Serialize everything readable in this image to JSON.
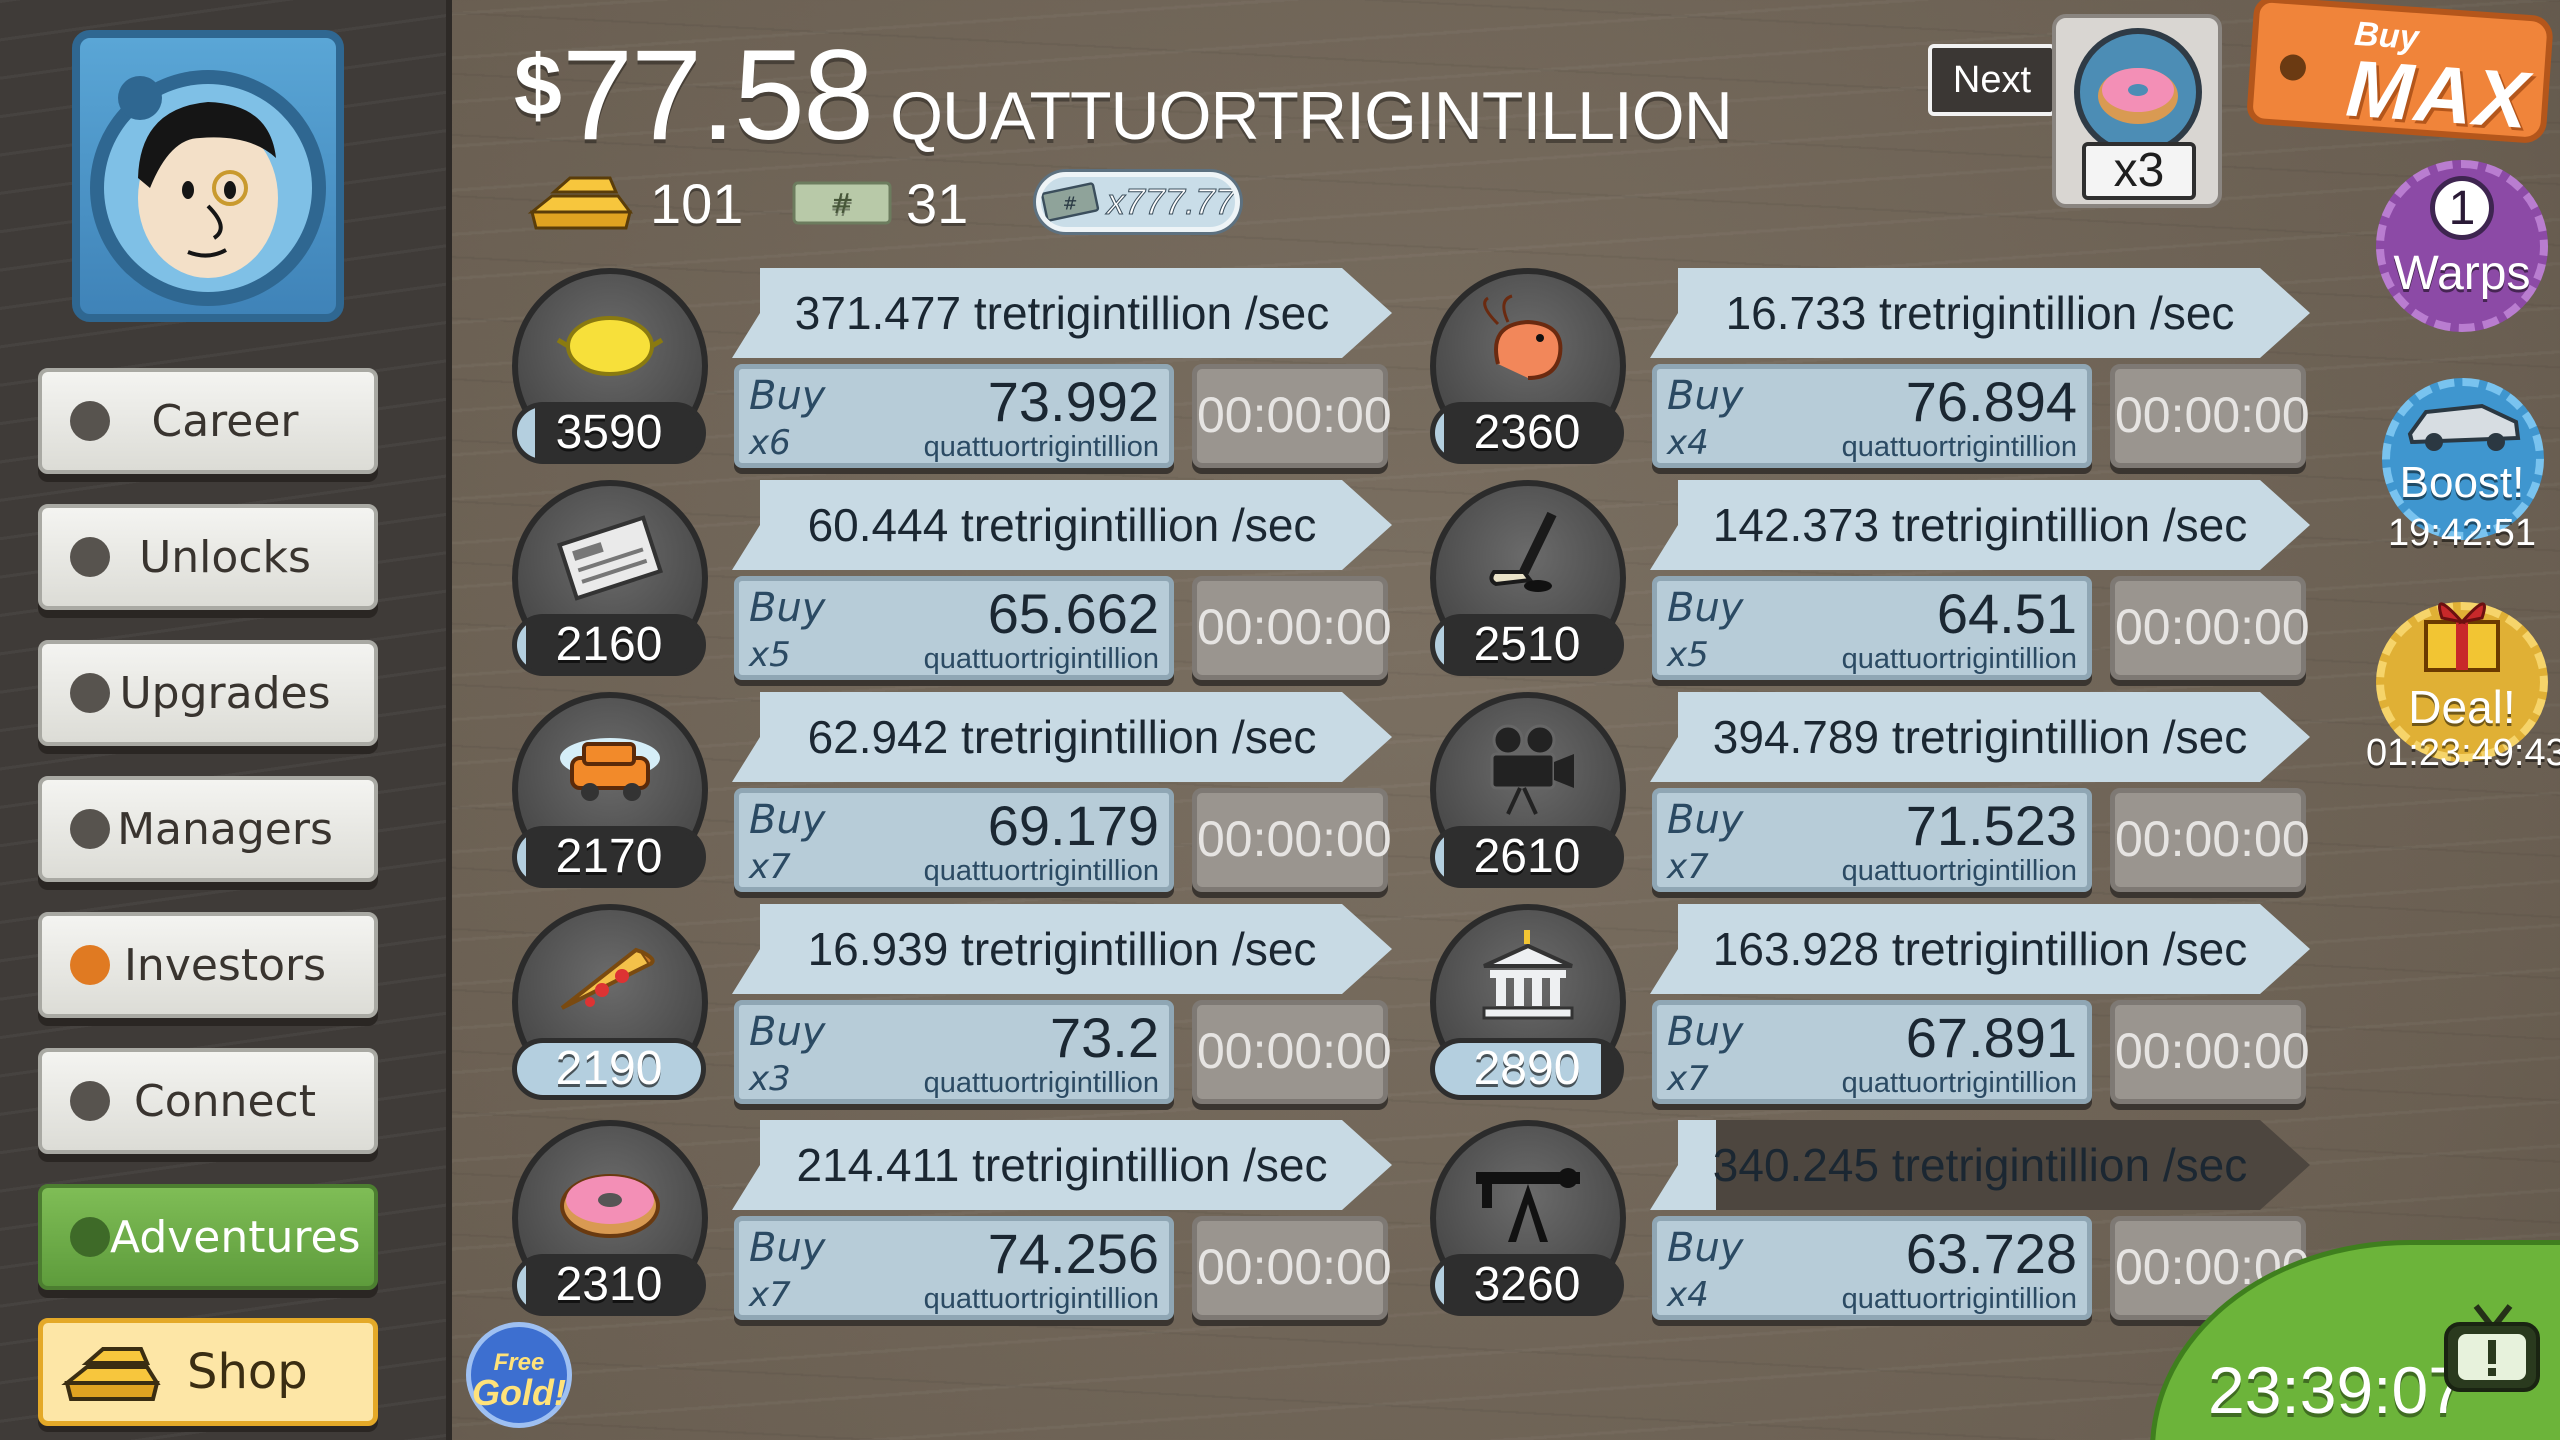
{
  "sidebar": {
    "nav": [
      {
        "label": "Career"
      },
      {
        "label": "Unlocks"
      },
      {
        "label": "Upgrades"
      },
      {
        "label": "Managers"
      },
      {
        "label": "Investors"
      },
      {
        "label": "Connect"
      },
      {
        "label": "Adventures"
      }
    ],
    "shop_label": "Shop"
  },
  "header": {
    "currency_symbol": "$",
    "money_amount": "77.58",
    "money_unit": "QUATTUORTRIGINTILLION",
    "gold_bars": "101",
    "megabucks": "31",
    "angel_multiplier": "x777.77"
  },
  "next_unlock": {
    "label": "Next",
    "multiplier": "x3",
    "icon": "donut-icon"
  },
  "buy_max": {
    "small": "Buy",
    "big": "MAX"
  },
  "badges": {
    "warps_count": "1",
    "warps_label": "Warps",
    "boost_label": "Boost!",
    "boost_timer": "19:42:51",
    "deal_label": "Deal!",
    "deal_timer": "01:23:49:43"
  },
  "businesses": [
    {
      "icon": "lemon-icon",
      "count": "3590",
      "progress": 0.1,
      "rate": "371.477 tretrigintillion /sec",
      "buy": "Buy",
      "mult": "x6",
      "price": "73.992",
      "unit": "quattuortrigintillion",
      "timer": "00:00:00"
    },
    {
      "icon": "newspaper-icon",
      "count": "2160",
      "progress": 0.05,
      "rate": "60.444 tretrigintillion /sec",
      "buy": "Buy",
      "mult": "x5",
      "price": "65.662",
      "unit": "quattuortrigintillion",
      "timer": "00:00:00"
    },
    {
      "icon": "car-wash-icon",
      "count": "2170",
      "progress": 0.05,
      "rate": "62.942 tretrigintillion /sec",
      "buy": "Buy",
      "mult": "x7",
      "price": "69.179",
      "unit": "quattuortrigintillion",
      "timer": "00:00:00"
    },
    {
      "icon": "pizza-icon",
      "count": "2190",
      "progress": 1.0,
      "rate": "16.939 tretrigintillion /sec",
      "buy": "Buy",
      "mult": "x3",
      "price": "73.2",
      "unit": "quattuortrigintillion",
      "timer": "00:00:00"
    },
    {
      "icon": "donut-icon",
      "count": "2310",
      "progress": 0.05,
      "rate": "214.411 tretrigintillion /sec",
      "buy": "Buy",
      "mult": "x7",
      "price": "74.256",
      "unit": "quattuortrigintillion",
      "timer": "00:00:00"
    },
    {
      "icon": "shrimp-icon",
      "count": "2360",
      "progress": 0.05,
      "rate": "16.733 tretrigintillion /sec",
      "buy": "Buy",
      "mult": "x4",
      "price": "76.894",
      "unit": "quattuortrigintillion",
      "timer": "00:00:00"
    },
    {
      "icon": "hockey-icon",
      "count": "2510",
      "progress": 0.05,
      "rate": "142.373 tretrigintillion /sec",
      "buy": "Buy",
      "mult": "x5",
      "price": "64.51",
      "unit": "quattuortrigintillion",
      "timer": "00:00:00"
    },
    {
      "icon": "movie-camera-icon",
      "count": "2610",
      "progress": 0.05,
      "rate": "394.789 tretrigintillion /sec",
      "buy": "Buy",
      "mult": "x7",
      "price": "71.523",
      "unit": "quattuortrigintillion",
      "timer": "00:00:00"
    },
    {
      "icon": "bank-icon",
      "count": "2890",
      "progress": 0.9,
      "rate": "163.928 tretrigintillion /sec",
      "buy": "Buy",
      "mult": "x7",
      "price": "67.891",
      "unit": "quattuortrigintillion",
      "timer": "00:00:00"
    },
    {
      "icon": "oil-rig-icon",
      "count": "3260",
      "progress": 0.05,
      "rate": "340.245 tretrigintillion /sec",
      "rate_progress": 0.1,
      "buy": "Buy",
      "mult": "x4",
      "price": "63.728",
      "unit": "quattuortrigintillion",
      "timer": "00:00:00"
    }
  ],
  "free_gold": {
    "line1": "Free",
    "line2": "Gold!"
  },
  "clock": "23:39:07",
  "colors": {
    "accent_orange": "#f0843a",
    "bar_blue": "#c8dae4",
    "adventures_green": "#6cb43a",
    "shop_yellow": "#fde6a6"
  }
}
